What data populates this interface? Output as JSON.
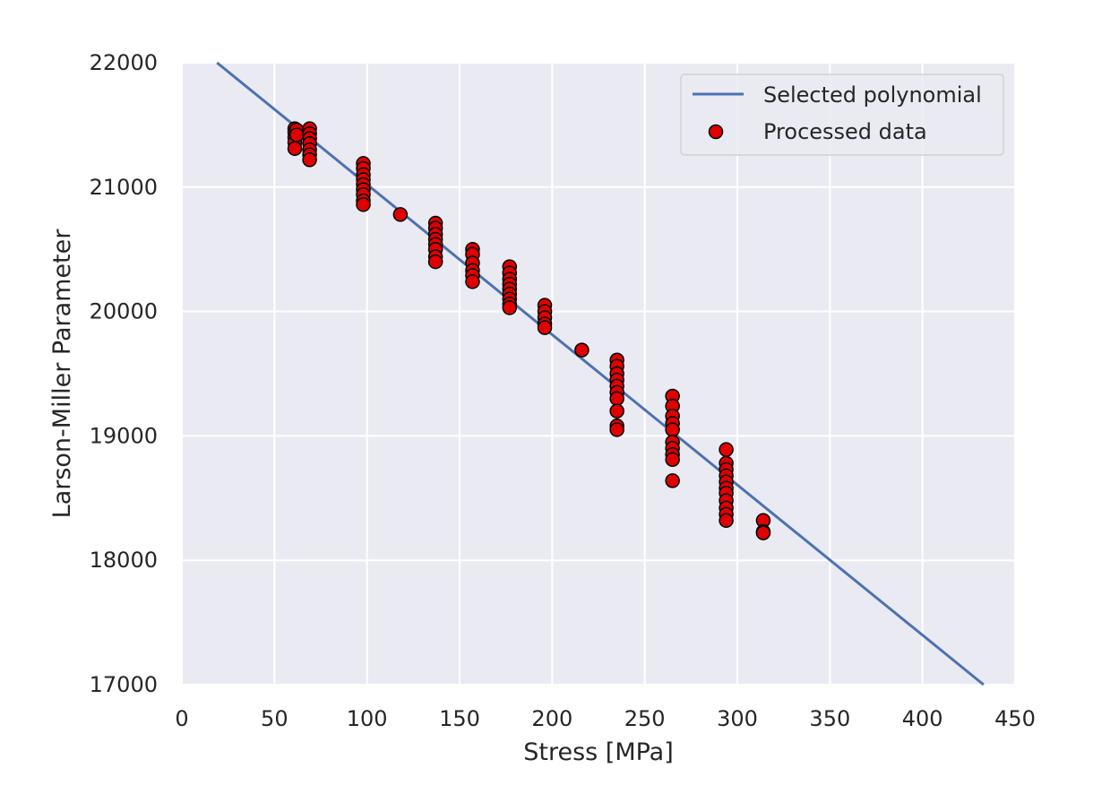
{
  "chart_data": {
    "type": "scatter",
    "title": "",
    "xlabel": "Stress [MPa]",
    "ylabel": "Larson-Miller Parameter",
    "xlim": [
      0,
      450
    ],
    "ylim": [
      17000,
      22000
    ],
    "x_ticks": [
      "0",
      "50",
      "100",
      "150",
      "200",
      "250",
      "300",
      "350",
      "400",
      "450"
    ],
    "y_ticks": [
      "17000",
      "18000",
      "19000",
      "20000",
      "21000",
      "22000"
    ],
    "grid": true,
    "legend_position": "top-right",
    "colors": {
      "background": "#eaeaf2",
      "grid": "#ffffff",
      "line": "#4c72b0",
      "marker_fill": "#e00000",
      "marker_edge": "#000000"
    },
    "series": [
      {
        "name": "Selected polynomial",
        "kind": "line",
        "x": [
          19,
          433
        ],
        "y": [
          22000,
          17000
        ]
      },
      {
        "name": "Processed data",
        "kind": "scatter",
        "points": [
          [
            61,
            21470
          ],
          [
            61,
            21440
          ],
          [
            61,
            21400
          ],
          [
            61,
            21360
          ],
          [
            61,
            21310
          ],
          [
            62,
            21460
          ],
          [
            62,
            21420
          ],
          [
            69,
            21470
          ],
          [
            69,
            21430
          ],
          [
            69,
            21390
          ],
          [
            69,
            21350
          ],
          [
            69,
            21300
          ],
          [
            69,
            21260
          ],
          [
            69,
            21220
          ],
          [
            98,
            21190
          ],
          [
            98,
            21150
          ],
          [
            98,
            21100
          ],
          [
            98,
            21060
          ],
          [
            98,
            21020
          ],
          [
            98,
            20980
          ],
          [
            98,
            20940
          ],
          [
            98,
            20890
          ],
          [
            98,
            20860
          ],
          [
            118,
            20780
          ],
          [
            137,
            20710
          ],
          [
            137,
            20670
          ],
          [
            137,
            20620
          ],
          [
            137,
            20580
          ],
          [
            137,
            20540
          ],
          [
            137,
            20500
          ],
          [
            137,
            20440
          ],
          [
            137,
            20400
          ],
          [
            157,
            20500
          ],
          [
            157,
            20460
          ],
          [
            157,
            20390
          ],
          [
            157,
            20330
          ],
          [
            157,
            20290
          ],
          [
            157,
            20240
          ],
          [
            177,
            20360
          ],
          [
            177,
            20310
          ],
          [
            177,
            20260
          ],
          [
            177,
            20220
          ],
          [
            177,
            20180
          ],
          [
            177,
            20140
          ],
          [
            177,
            20100
          ],
          [
            177,
            20060
          ],
          [
            177,
            20030
          ],
          [
            196,
            20050
          ],
          [
            196,
            20000
          ],
          [
            196,
            19950
          ],
          [
            196,
            19900
          ],
          [
            196,
            19870
          ],
          [
            216,
            19690
          ],
          [
            235,
            19610
          ],
          [
            235,
            19560
          ],
          [
            235,
            19500
          ],
          [
            235,
            19450
          ],
          [
            235,
            19400
          ],
          [
            235,
            19350
          ],
          [
            235,
            19300
          ],
          [
            235,
            19200
          ],
          [
            235,
            19080
          ],
          [
            235,
            19050
          ],
          [
            265,
            19320
          ],
          [
            265,
            19240
          ],
          [
            265,
            19160
          ],
          [
            265,
            19100
          ],
          [
            265,
            19050
          ],
          [
            265,
            18950
          ],
          [
            265,
            18900
          ],
          [
            265,
            18850
          ],
          [
            265,
            18810
          ],
          [
            265,
            18640
          ],
          [
            294,
            18890
          ],
          [
            294,
            18780
          ],
          [
            294,
            18730
          ],
          [
            294,
            18680
          ],
          [
            294,
            18630
          ],
          [
            294,
            18580
          ],
          [
            294,
            18540
          ],
          [
            294,
            18480
          ],
          [
            294,
            18420
          ],
          [
            294,
            18370
          ],
          [
            294,
            18320
          ],
          [
            314,
            18320
          ],
          [
            314,
            18230
          ],
          [
            314,
            18220
          ]
        ]
      }
    ]
  }
}
